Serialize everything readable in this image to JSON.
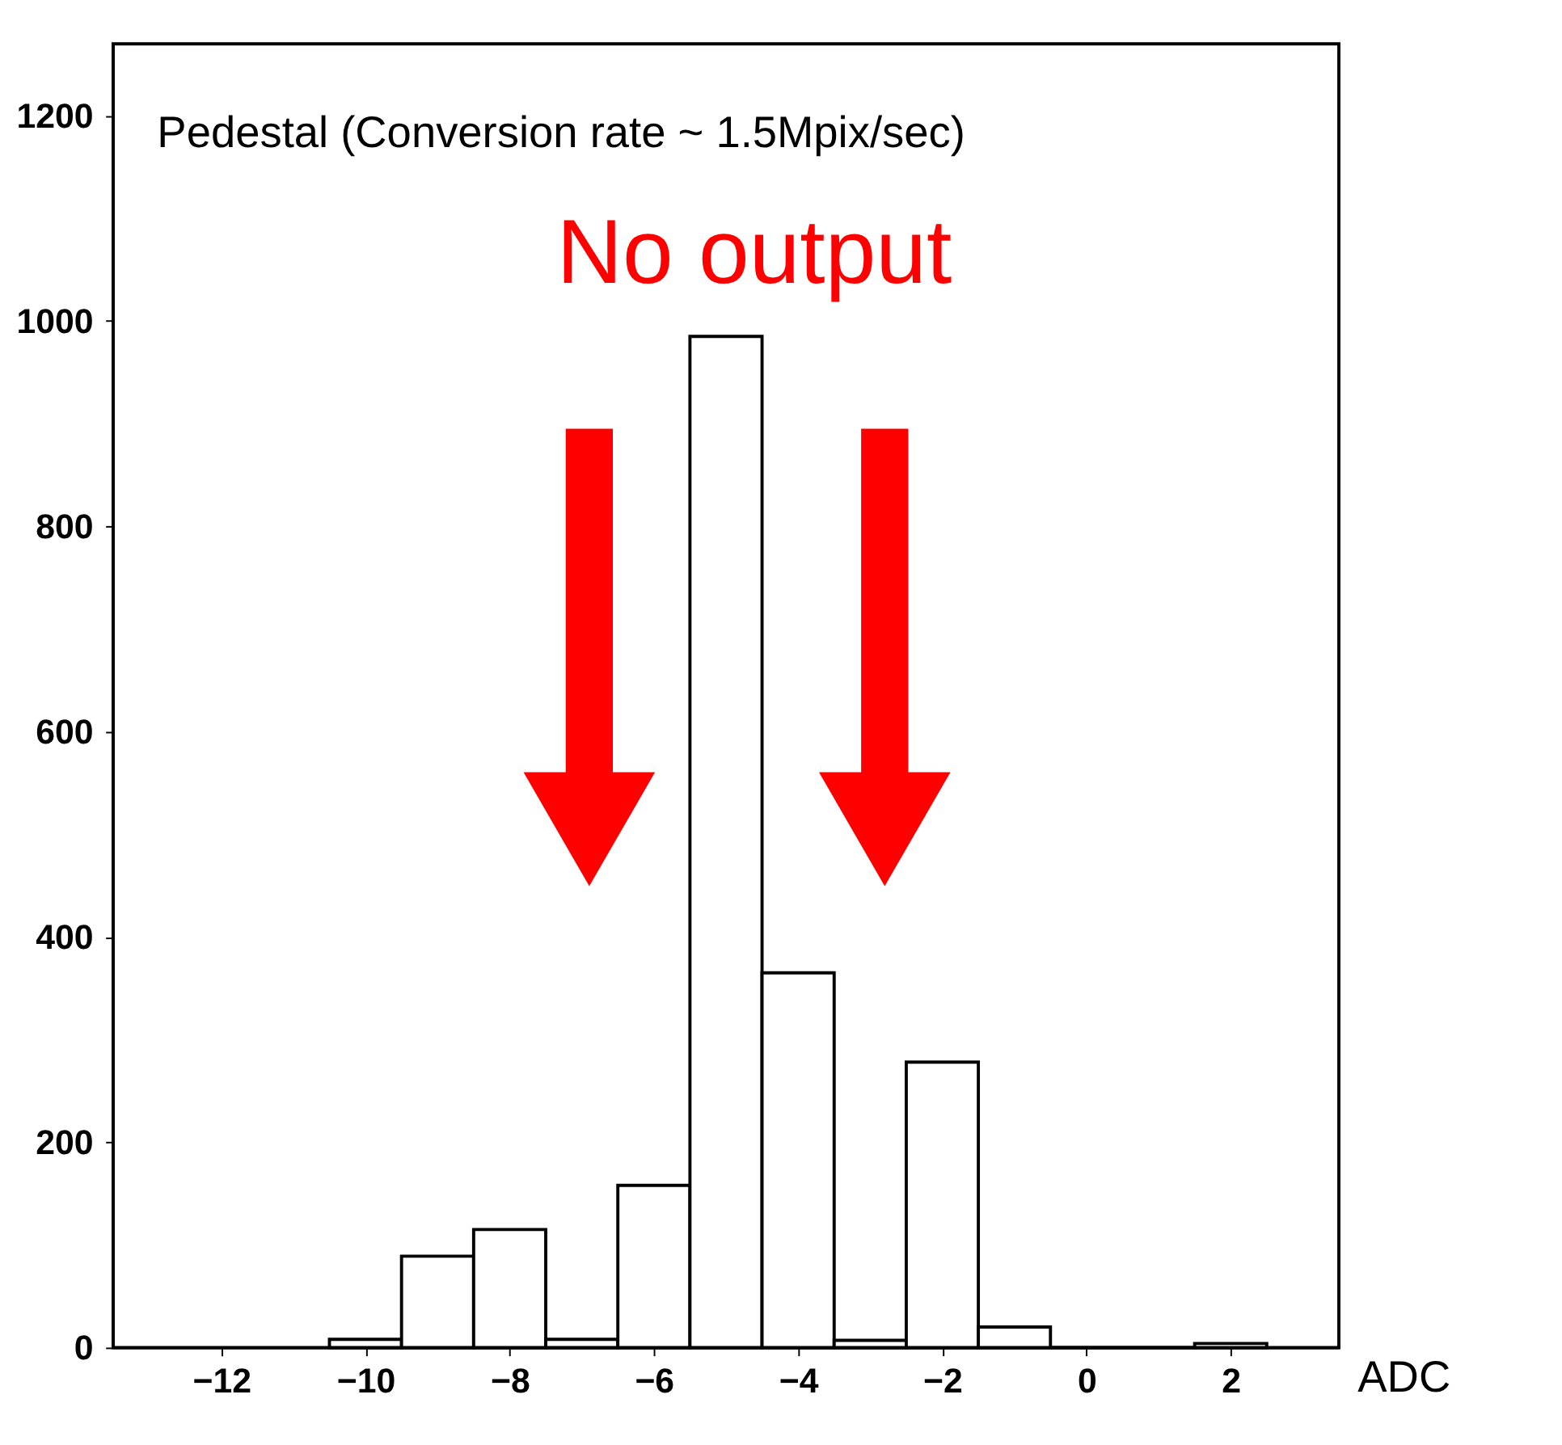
{
  "chart_data": {
    "type": "histogram",
    "xlabel": "ADC",
    "annotations": [
      "Pedestal  (Conversion rate ~ 1.5Mpix/sec)",
      "No output"
    ],
    "bins": [
      -10.5,
      -9.5,
      -8.5,
      -7.5,
      -6.5,
      -5.5,
      -4.5,
      -3.5,
      -2.5,
      -1.5,
      -0.5,
      0.5,
      1.5,
      2.5
    ],
    "values": [
      8,
      89,
      115,
      8,
      158,
      985,
      365,
      7,
      278,
      20,
      0,
      0,
      4
    ],
    "color": "#000000",
    "xlim": [
      -13.5,
      3.5
    ],
    "xticks": [
      -12,
      -10,
      -8,
      -6,
      -4,
      -2,
      0,
      2
    ],
    "ylim": [
      0,
      1270
    ],
    "yticks": [
      0,
      200,
      400,
      600,
      800,
      1000,
      1200
    ],
    "grid": false
  }
}
